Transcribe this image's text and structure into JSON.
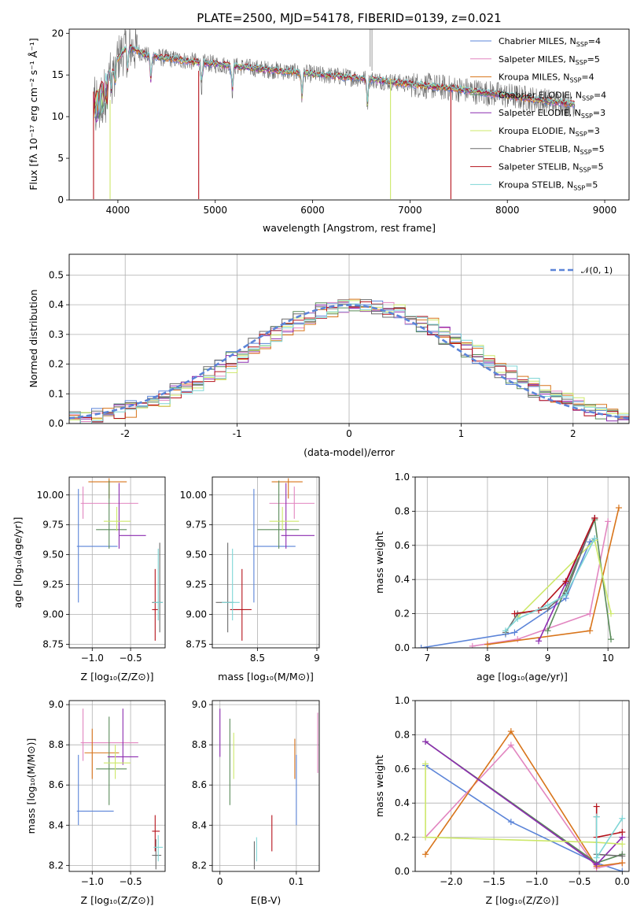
{
  "colors": {
    "chabrier_miles": "#5b84d8",
    "salpeter_miles": "#e286c0",
    "kroupa_miles": "#d8741a",
    "chabrier_elodie": "#5a8b5a",
    "salpeter_elodie": "#8c2bb0",
    "kroupa_elodie": "#cde86a",
    "chabrier_stelib": "#6b6b6b",
    "salpeter_stelib": "#b5121b",
    "kroupa_stelib": "#7fd6d6"
  },
  "chart_data": [
    {
      "id": "spectrum",
      "type": "line",
      "title": "PLATE=2500, MJD=54178, FIBERID=0139, z=0.021",
      "xlabel": "wavelength [Angstrom, rest frame]",
      "ylabel": "Flux [fλ 10⁻¹⁷ erg cm⁻² s⁻¹ Å⁻¹]",
      "xlim": [
        3500,
        9250
      ],
      "ylim": [
        0,
        20.5
      ],
      "xticks": [
        4000,
        5000,
        6000,
        7000,
        8000,
        9000
      ],
      "yticks": [
        0,
        5,
        10,
        15,
        20
      ],
      "legend": "top-right",
      "series": [
        {
          "key": "chabrier_miles",
          "label": "Chabrier MILES, N",
          "sub": "SSP",
          "eq": "=4"
        },
        {
          "key": "salpeter_miles",
          "label": "Salpeter MILES, N",
          "sub": "SSP",
          "eq": "=5"
        },
        {
          "key": "kroupa_miles",
          "label": "Kroupa MILES, N",
          "sub": "SSP",
          "eq": "=4"
        },
        {
          "key": "chabrier_elodie",
          "label": "Chabrier ELODIE, N",
          "sub": "SSP",
          "eq": "=4"
        },
        {
          "key": "salpeter_elodie",
          "label": "Salpeter ELODIE, N",
          "sub": "SSP",
          "eq": "=3"
        },
        {
          "key": "kroupa_elodie",
          "label": "Kroupa ELODIE, N",
          "sub": "SSP",
          "eq": "=3"
        },
        {
          "key": "chabrier_stelib",
          "label": "Chabrier STELIB, N",
          "sub": "SSP",
          "eq": "=5"
        },
        {
          "key": "salpeter_stelib",
          "label": "Salpeter STELIB, N",
          "sub": "SSP",
          "eq": "=5"
        },
        {
          "key": "kroupa_stelib",
          "label": "Kroupa STELIB, N",
          "sub": "SSP",
          "eq": "=5"
        }
      ],
      "continuum": [
        [
          3750,
          13.0
        ],
        [
          3850,
          14.5
        ],
        [
          4000,
          17.0
        ],
        [
          4100,
          18.5
        ],
        [
          4300,
          17.3
        ],
        [
          4500,
          17.0
        ],
        [
          5000,
          16.3
        ],
        [
          5500,
          15.7
        ],
        [
          6000,
          15.1
        ],
        [
          6500,
          14.6
        ],
        [
          7000,
          13.9
        ],
        [
          7500,
          13.3
        ],
        [
          8000,
          12.5
        ],
        [
          8500,
          11.7
        ],
        [
          8700,
          11.5
        ]
      ]
    },
    {
      "id": "residuals",
      "type": "line",
      "xlabel": "(data-model)/error",
      "ylabel": "Normed distribution",
      "xlim": [
        -2.5,
        2.5
      ],
      "ylim": [
        0,
        0.57
      ],
      "xticks": [
        -2,
        -1,
        0,
        1,
        2
      ],
      "yticks": [
        0.0,
        0.1,
        0.2,
        0.3,
        0.4,
        0.5
      ],
      "grid": true,
      "legend": "top-right",
      "reference_label": "𝒩(0, 1)"
    },
    {
      "id": "age_vs_Z",
      "type": "scatter",
      "xlabel": "Z [log₁₀(Z/Z⊙)]",
      "ylabel": "age  [log₁₀(age/yr)]",
      "xlim": [
        -1.3,
        -0.05
      ],
      "ylim": [
        8.72,
        10.15
      ],
      "xticks": [
        -1.0,
        -0.5
      ],
      "xticklabels": [
        "−1.0",
        "−0.5"
      ],
      "yticks": [
        8.75,
        9.0,
        9.25,
        9.5,
        9.75,
        10.0
      ],
      "grid": true
    },
    {
      "id": "age_vs_mass",
      "type": "scatter",
      "xlabel": "mass [log₁₀(M/M⊙)]",
      "xlim": [
        8.12,
        9.02
      ],
      "ylim": [
        8.72,
        10.15
      ],
      "xticks": [
        8.5,
        9.0
      ],
      "yticks": [
        8.75,
        9.0,
        9.25,
        9.5,
        9.75,
        10.0
      ],
      "grid": true
    },
    {
      "id": "weight_vs_age",
      "type": "line",
      "xlabel": "age  [log₁₀(age/yr)]",
      "ylabel": "mass weight",
      "xlim": [
        6.8,
        10.35
      ],
      "ylim": [
        0,
        1.0
      ],
      "xticks": [
        7,
        8,
        9,
        10
      ],
      "yticks": [
        0.0,
        0.2,
        0.4,
        0.6,
        0.8,
        1.0
      ],
      "grid": true
    },
    {
      "id": "mass_vs_Z",
      "type": "scatter",
      "xlabel": "Z [log₁₀(Z/Z⊙)]",
      "ylabel": "mass [log₁₀(M/M⊙)]",
      "xlim": [
        -1.3,
        -0.05
      ],
      "ylim": [
        8.17,
        9.02
      ],
      "xticks": [
        -1.0,
        -0.5
      ],
      "xticklabels": [
        "−1.0",
        "−0.5"
      ],
      "yticks": [
        8.2,
        8.4,
        8.6,
        8.8,
        9.0
      ],
      "grid": true
    },
    {
      "id": "mass_vs_ebv",
      "type": "scatter",
      "xlabel": "E(B-V)",
      "xlim": [
        -0.01,
        0.13
      ],
      "ylim": [
        8.17,
        9.02
      ],
      "xticks": [
        0.0,
        0.1
      ],
      "yticks": [
        8.2,
        8.4,
        8.6,
        8.8,
        9.0
      ],
      "grid": true
    },
    {
      "id": "weight_vs_Z",
      "type": "line",
      "xlabel": "Z [log₁₀(Z/Z⊙)]",
      "ylabel": "mass weight",
      "xlim": [
        -2.42,
        0.08
      ],
      "ylim": [
        0,
        1.0
      ],
      "xticks": [
        -2.0,
        -1.5,
        -1.0,
        -0.5,
        0.0
      ],
      "xticklabels": [
        "−2.0",
        "−1.5",
        "−1.0",
        "−0.5",
        "0.0"
      ],
      "yticks": [
        0.0,
        0.2,
        0.4,
        0.6,
        0.8,
        1.0
      ],
      "grid": true
    }
  ],
  "panel_points": {
    "age_Z": [
      {
        "c": "chabrier_miles",
        "x": -1.18,
        "y": 9.57,
        "dx": [
          -1.2,
          -0.67
        ],
        "dy": [
          9.1,
          10.05
        ]
      },
      {
        "c": "salpeter_miles",
        "x": -1.12,
        "y": 9.93,
        "dx": [
          -1.15,
          -0.4
        ],
        "dy": [
          9.8,
          10.07
        ]
      },
      {
        "c": "kroupa_miles",
        "x": -0.78,
        "y": 10.11,
        "dx": [
          -1.05,
          -0.55
        ],
        "dy": [
          9.97,
          10.14
        ]
      },
      {
        "c": "chabrier_elodie",
        "x": -0.78,
        "y": 9.71,
        "dx": [
          -0.95,
          -0.55
        ],
        "dy": [
          9.55,
          10.12
        ]
      },
      {
        "c": "salpeter_elodie",
        "x": -0.65,
        "y": 9.66,
        "dx": [
          -0.65,
          -0.3
        ],
        "dy": [
          9.55,
          10.1
        ]
      },
      {
        "c": "kroupa_elodie",
        "x": -0.68,
        "y": 9.78,
        "dx": [
          -0.85,
          -0.5
        ],
        "dy": [
          9.7,
          9.9
        ]
      },
      {
        "c": "chabrier_stelib",
        "x": -0.12,
        "y": 9.1,
        "dx": [
          -0.22,
          -0.08
        ],
        "dy": [
          8.85,
          9.6
        ]
      },
      {
        "c": "salpeter_stelib",
        "x": -0.18,
        "y": 9.04,
        "dx": [
          -0.22,
          -0.14
        ],
        "dy": [
          8.78,
          9.38
        ]
      },
      {
        "c": "kroupa_stelib",
        "x": -0.14,
        "y": 9.1,
        "dx": [
          -0.2,
          -0.08
        ],
        "dy": [
          8.95,
          9.55
        ]
      }
    ],
    "age_mass": [
      {
        "c": "chabrier_miles",
        "x": 8.47,
        "y": 9.57,
        "dx": [
          8.47,
          8.82
        ],
        "dy": [
          9.1,
          10.05
        ]
      },
      {
        "c": "salpeter_miles",
        "x": 8.81,
        "y": 9.93,
        "dx": [
          8.6,
          8.98
        ],
        "dy": [
          9.8,
          10.07
        ]
      },
      {
        "c": "kroupa_miles",
        "x": 8.76,
        "y": 10.11,
        "dx": [
          8.62,
          8.88
        ],
        "dy": [
          9.97,
          10.14
        ]
      },
      {
        "c": "chabrier_elodie",
        "x": 8.68,
        "y": 9.71,
        "dx": [
          8.5,
          8.85
        ],
        "dy": [
          9.55,
          10.12
        ]
      },
      {
        "c": "salpeter_elodie",
        "x": 8.74,
        "y": 9.66,
        "dx": [
          8.7,
          8.98
        ],
        "dy": [
          9.55,
          10.1
        ]
      },
      {
        "c": "kroupa_elodie",
        "x": 8.71,
        "y": 9.78,
        "dx": [
          8.6,
          8.85
        ],
        "dy": [
          9.7,
          9.9
        ]
      },
      {
        "c": "chabrier_stelib",
        "x": 8.25,
        "y": 9.1,
        "dx": [
          8.15,
          8.3
        ],
        "dy": [
          8.85,
          9.6
        ]
      },
      {
        "c": "salpeter_stelib",
        "x": 8.37,
        "y": 9.04,
        "dx": [
          8.27,
          8.45
        ],
        "dy": [
          8.78,
          9.38
        ]
      },
      {
        "c": "kroupa_stelib",
        "x": 8.29,
        "y": 9.1,
        "dx": [
          8.2,
          8.35
        ],
        "dy": [
          8.95,
          9.55
        ]
      }
    ],
    "weight_age": [
      {
        "c": "chabrier_miles",
        "pts": [
          [
            6.9,
            0.0
          ],
          [
            8.3,
            0.08
          ],
          [
            8.45,
            0.09
          ],
          [
            9.3,
            0.29
          ],
          [
            9.7,
            0.62
          ],
          [
            9.78,
            0.64
          ]
        ]
      },
      {
        "c": "salpeter_miles",
        "pts": [
          [
            7.75,
            0.01
          ],
          [
            8.5,
            0.05
          ],
          [
            9.7,
            0.2
          ],
          [
            10.0,
            0.74
          ]
        ]
      },
      {
        "c": "kroupa_miles",
        "pts": [
          [
            8.0,
            0.02
          ],
          [
            9.7,
            0.1
          ],
          [
            10.18,
            0.82
          ]
        ]
      },
      {
        "c": "chabrier_elodie",
        "pts": [
          [
            9.0,
            0.1
          ],
          [
            9.78,
            0.75
          ],
          [
            10.05,
            0.05
          ]
        ]
      },
      {
        "c": "salpeter_elodie",
        "pts": [
          [
            8.85,
            0.04
          ],
          [
            9.3,
            0.38
          ],
          [
            9.78,
            0.76
          ]
        ]
      },
      {
        "c": "kroupa_elodie",
        "pts": [
          [
            8.5,
            0.18
          ],
          [
            9.78,
            0.63
          ],
          [
            10.05,
            0.2
          ]
        ]
      },
      {
        "c": "chabrier_stelib",
        "pts": [
          [
            8.3,
            0.09
          ],
          [
            8.5,
            0.2
          ],
          [
            9.0,
            0.23
          ],
          [
            9.3,
            0.32
          ],
          [
            9.78,
            0.76
          ]
        ]
      },
      {
        "c": "salpeter_stelib",
        "pts": [
          [
            8.45,
            0.2
          ],
          [
            8.85,
            0.22
          ],
          [
            9.3,
            0.39
          ],
          [
            9.78,
            0.76
          ]
        ]
      },
      {
        "c": "kroupa_stelib",
        "pts": [
          [
            8.3,
            0.1
          ],
          [
            8.5,
            0.17
          ],
          [
            9.0,
            0.25
          ],
          [
            9.3,
            0.31
          ],
          [
            9.78,
            0.64
          ]
        ]
      }
    ],
    "mass_Z": [
      {
        "c": "chabrier_miles",
        "x": -1.18,
        "y": 8.47,
        "dx": [
          -1.2,
          -0.72
        ],
        "dy": [
          8.4,
          8.75
        ]
      },
      {
        "c": "salpeter_miles",
        "x": -1.12,
        "y": 8.81,
        "dx": [
          -1.15,
          -0.4
        ],
        "dy": [
          8.72,
          8.98
        ]
      },
      {
        "c": "kroupa_miles",
        "x": -1.0,
        "y": 8.76,
        "dx": [
          -1.1,
          -0.65
        ],
        "dy": [
          8.63,
          8.88
        ]
      },
      {
        "c": "chabrier_elodie",
        "x": -0.78,
        "y": 8.68,
        "dx": [
          -0.95,
          -0.55
        ],
        "dy": [
          8.5,
          8.94
        ]
      },
      {
        "c": "salpeter_elodie",
        "x": -0.6,
        "y": 8.74,
        "dx": [
          -0.8,
          -0.4
        ],
        "dy": [
          8.7,
          8.98
        ]
      },
      {
        "c": "kroupa_elodie",
        "x": -0.7,
        "y": 8.71,
        "dx": [
          -0.85,
          -0.5
        ],
        "dy": [
          8.63,
          8.8
        ]
      },
      {
        "c": "chabrier_stelib",
        "x": -0.17,
        "y": 8.25,
        "dx": [
          -0.22,
          -0.1
        ],
        "dy": [
          8.18,
          8.33
        ]
      },
      {
        "c": "salpeter_stelib",
        "x": -0.18,
        "y": 8.37,
        "dx": [
          -0.22,
          -0.12
        ],
        "dy": [
          8.27,
          8.45
        ]
      },
      {
        "c": "kroupa_stelib",
        "x": -0.14,
        "y": 8.29,
        "dx": [
          -0.2,
          -0.08
        ],
        "dy": [
          8.22,
          8.35
        ]
      }
    ],
    "mass_ebv": [
      {
        "c": "chabrier_miles",
        "x": 0.1,
        "y": 8.47,
        "dy": [
          8.4,
          8.75
        ]
      },
      {
        "c": "salpeter_miles",
        "x": 0.128,
        "y": 8.81,
        "dy": [
          8.66,
          8.96
        ]
      },
      {
        "c": "kroupa_miles",
        "x": 0.098,
        "y": 8.76,
        "dy": [
          8.63,
          8.83
        ]
      },
      {
        "c": "chabrier_elodie",
        "x": 0.013,
        "y": 8.72,
        "dy": [
          8.5,
          8.93
        ]
      },
      {
        "c": "salpeter_elodie",
        "x": 0.0,
        "y": 8.86,
        "dy": [
          8.74,
          8.98
        ]
      },
      {
        "c": "kroupa_elodie",
        "x": 0.018,
        "y": 8.75,
        "dy": [
          8.63,
          8.86
        ]
      },
      {
        "c": "chabrier_stelib",
        "x": 0.045,
        "y": 8.25,
        "dy": [
          8.18,
          8.32
        ]
      },
      {
        "c": "salpeter_stelib",
        "x": 0.068,
        "y": 8.36,
        "dy": [
          8.27,
          8.45
        ]
      },
      {
        "c": "kroupa_stelib",
        "x": 0.048,
        "y": 8.28,
        "dy": [
          8.22,
          8.34
        ]
      }
    ],
    "weight_Z": [
      {
        "c": "chabrier_miles",
        "pts": [
          [
            -2.3,
            0.62
          ],
          [
            -1.3,
            0.29
          ],
          [
            -0.3,
            0.05
          ],
          [
            0.0,
            0.0
          ]
        ]
      },
      {
        "c": "salpeter_miles",
        "pts": [
          [
            -2.3,
            0.2
          ],
          [
            -1.3,
            0.74
          ],
          [
            -0.3,
            0.02
          ],
          [
            0.0,
            0.05
          ]
        ]
      },
      {
        "c": "kroupa_miles",
        "pts": [
          [
            -2.3,
            0.1
          ],
          [
            -1.3,
            0.82
          ],
          [
            -0.3,
            0.03
          ],
          [
            0.0,
            0.05
          ]
        ]
      },
      {
        "c": "chabrier_elodie",
        "pts": [
          [
            -2.3,
            0.76
          ],
          [
            -0.3,
            0.05
          ],
          [
            0.0,
            0.1
          ]
        ]
      },
      {
        "c": "salpeter_elodie",
        "pts": [
          [
            -2.3,
            0.76
          ],
          [
            -0.3,
            0.04
          ],
          [
            0.0,
            0.2
          ]
        ]
      },
      {
        "c": "kroupa_elodie",
        "pts": [
          [
            -2.3,
            0.63
          ],
          [
            -2.3,
            0.2
          ],
          [
            -0.3,
            0.17
          ],
          [
            0.0,
            0.16
          ]
        ]
      },
      {
        "c": "chabrier_stelib",
        "pts": [
          [
            -0.3,
            0.32
          ],
          [
            -0.3,
            0.1
          ],
          [
            0.0,
            0.09
          ]
        ]
      },
      {
        "c": "salpeter_stelib",
        "pts": [
          [
            -0.3,
            0.38
          ],
          [
            -0.3,
            0.2
          ],
          [
            0.0,
            0.23
          ]
        ]
      },
      {
        "c": "kroupa_stelib",
        "pts": [
          [
            -0.3,
            0.32
          ],
          [
            -0.3,
            0.08
          ],
          [
            0.0,
            0.31
          ]
        ]
      }
    ]
  }
}
